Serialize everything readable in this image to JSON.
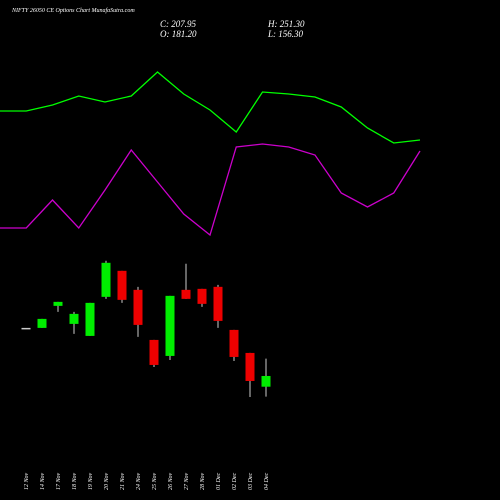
{
  "header": {
    "title": "NIFTY 26050  CE Options  Chart MunafaSutra.com",
    "close": "C: 207.95",
    "high": "H: 251.30",
    "open": "O: 181.20",
    "low": "L: 156.30"
  },
  "chart_data": [
    {
      "type": "line",
      "ylim": [
        0,
        100
      ],
      "series": [
        {
          "color": "#00ff00",
          "values": [
            74.5,
            74.5,
            77.5,
            82,
            79,
            82,
            94,
            83,
            75,
            64,
            84,
            83,
            81.5,
            76.5,
            66,
            58.5,
            60
          ]
        },
        {
          "color": "#cc00cc",
          "values": [
            16,
            16,
            30,
            16,
            35,
            55,
            39,
            23,
            12.5,
            56.5,
            58,
            56.5,
            52.5,
            33.5,
            26.5,
            33.5,
            54.5
          ]
        }
      ]
    },
    {
      "type": "candlestick",
      "ylim": [
        148,
        510
      ],
      "up_color": "#00ee00",
      "down_color": "#ee0000",
      "flat_color": "#cccccc",
      "categories": [
        "12 Nov",
        "14 Nov",
        "17 Nov",
        "18 Nov",
        "19 Nov",
        "20 Nov",
        "21 Nov",
        "24 Nov",
        "25 Nov",
        "26 Nov",
        "27 Nov",
        "28 Nov",
        "01 Dec",
        "02 Dec",
        "03 Dec",
        "04 Dec"
      ],
      "open": [
        328,
        328,
        383,
        338,
        308,
        405.5,
        470.5,
        423,
        298,
        258,
        423,
        425.5,
        430.5,
        323,
        265.5,
        181.2
      ],
      "high": [
        328,
        350.5,
        393,
        368,
        390.5,
        495.5,
        470.5,
        430.5,
        298,
        408,
        488,
        425.5,
        435.5,
        323,
        265.5,
        251.3
      ],
      "low": [
        328,
        328,
        368,
        313,
        308,
        400.5,
        390.5,
        305.5,
        230.5,
        248,
        400.5,
        380.5,
        328,
        245.5,
        155.5,
        156.3
      ],
      "close": [
        328,
        350.5,
        393,
        363,
        390.5,
        490.5,
        398,
        335.5,
        235.5,
        408,
        400.5,
        388,
        345.5,
        255.5,
        195.5,
        207.95
      ]
    }
  ]
}
